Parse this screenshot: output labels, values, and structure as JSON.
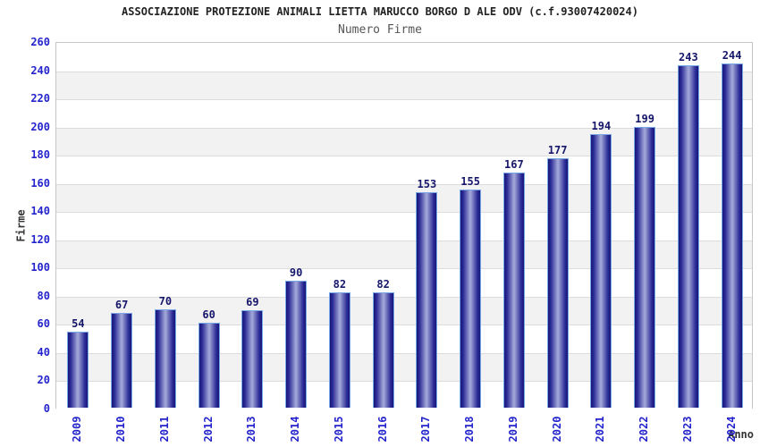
{
  "chart_data": {
    "type": "bar",
    "title": "ASSOCIAZIONE PROTEZIONE ANIMALI LIETTA MARUCCO BORGO D ALE ODV (c.f.93007420024)",
    "subtitle": "Numero Firme",
    "categories": [
      "2009",
      "2010",
      "2011",
      "2012",
      "2013",
      "2014",
      "2015",
      "2016",
      "2017",
      "2018",
      "2019",
      "2020",
      "2021",
      "2022",
      "2023",
      "2024"
    ],
    "values": [
      54,
      67,
      70,
      60,
      69,
      90,
      82,
      82,
      153,
      155,
      167,
      177,
      194,
      199,
      243,
      244
    ],
    "xlabel": "Anno",
    "ylabel": "Firme",
    "ylim": [
      0,
      260
    ],
    "ytick_step": 20,
    "grid": true,
    "legend": "none",
    "band_colors": [
      "#ffffff",
      "#f2f2f2"
    ],
    "colors": {
      "bar_dark": "#17177a",
      "bar_mid": "#2b2b96",
      "bar_light": "#a6abdb",
      "bar_border": "#7aa8e4",
      "tick_label": "#2424cc",
      "value_label": "#16166b",
      "axis_title": "#333333",
      "title": "#222222",
      "subtitle": "#555555",
      "gridline": "#dcdcdc",
      "plot_border": "#c6c6c6"
    }
  }
}
